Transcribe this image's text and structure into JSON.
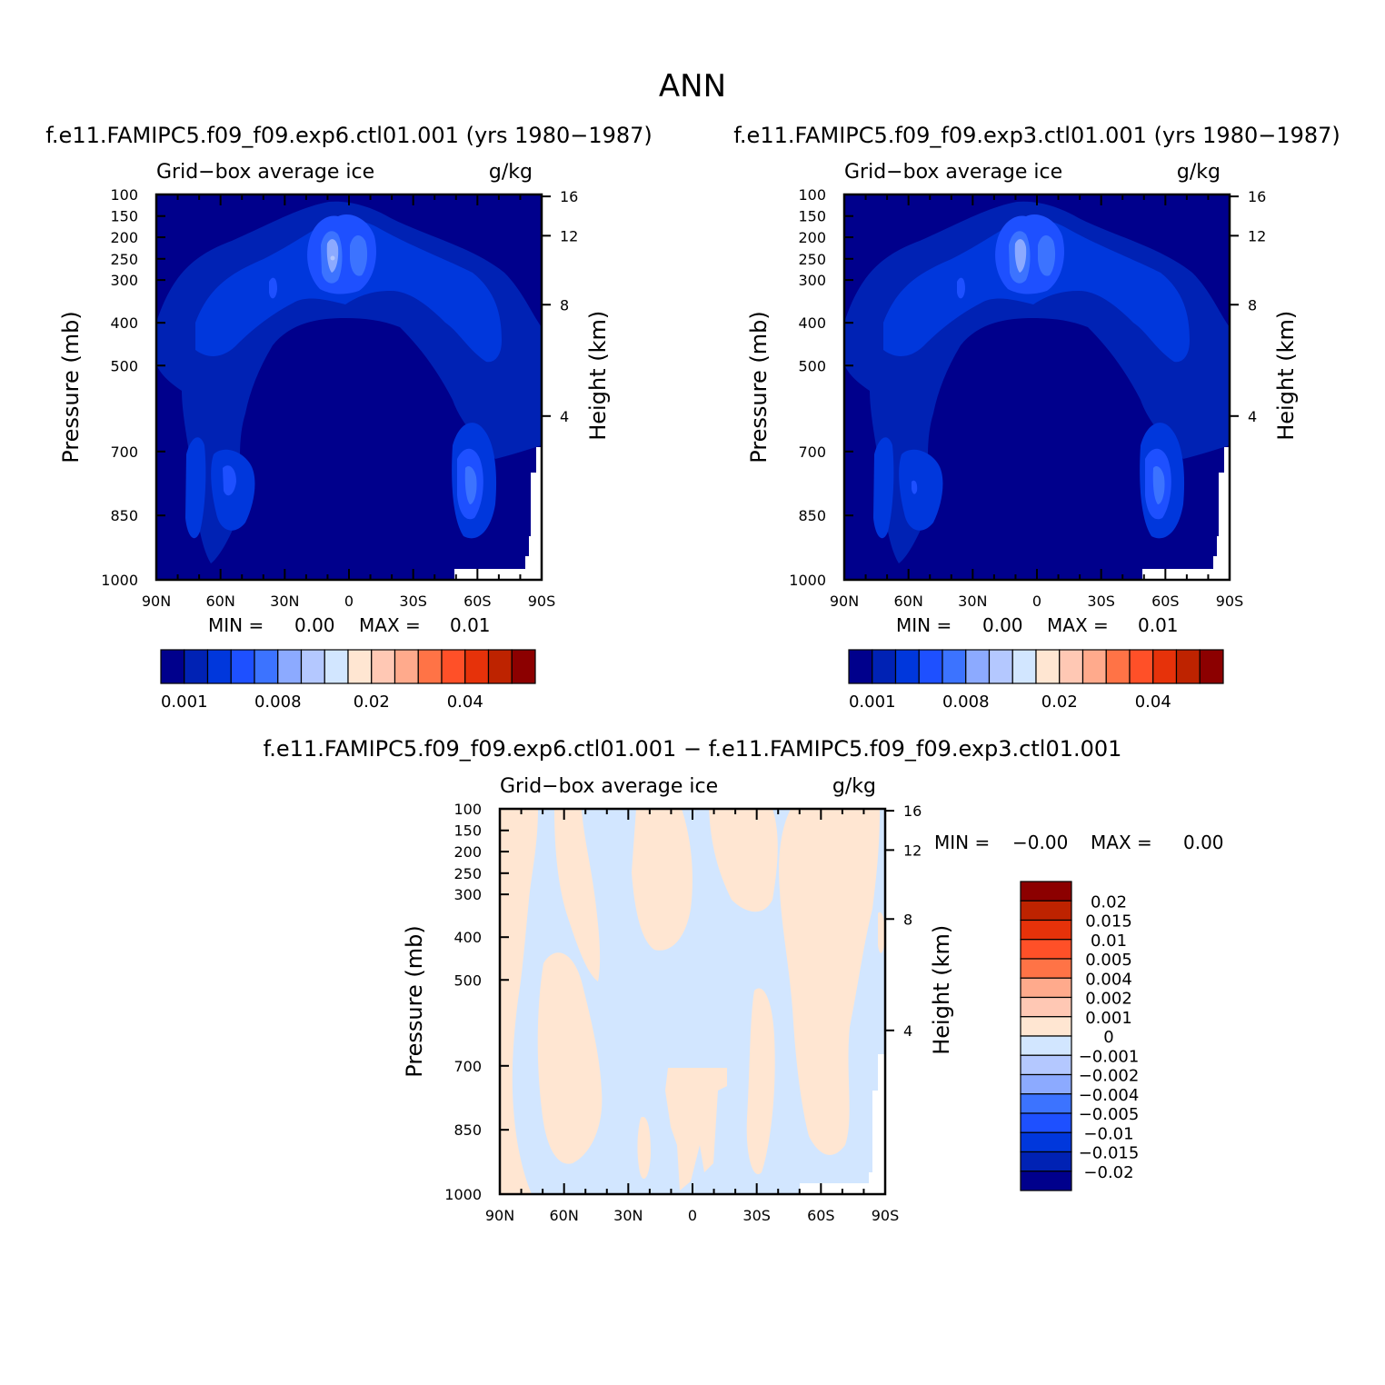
{
  "page": {
    "title": "ANN",
    "panel_a_title": "f.e11.FAMIPC5.f09_f09.exp6.ctl01.001 (yrs 1980−1987)",
    "panel_b_title": "f.e11.FAMIPC5.f09_f09.exp3.ctl01.001 (yrs 1980−1987)",
    "diff_title": "f.e11.FAMIPC5.f09_f09.exp6.ctl01.001 − f.e11.FAMIPC5.f09_f09.exp3.ctl01.001"
  },
  "chart_data": [
    {
      "type": "heatmap",
      "label_left": "Grid−box average ice",
      "label_right": "g/kg",
      "ylabel": "Pressure (mb)",
      "y2label": "Height (km)",
      "x_ticks": [
        "90N",
        "60N",
        "30N",
        "0",
        "30S",
        "60S",
        "90S"
      ],
      "y_ticks": [
        "100",
        "150",
        "200",
        "250",
        "300",
        "400",
        "500",
        "700",
        "850",
        "1000"
      ],
      "y2_ticks": [
        "16",
        "12",
        "8",
        "4"
      ],
      "min_text": "MIN =",
      "min_value": "0.00",
      "max_text": "MAX =",
      "max_value": "0.01",
      "colorbar_labels": [
        "0.001",
        "0.008",
        "0.02",
        "0.04"
      ],
      "colors": [
        "#00008c",
        "#0022b4",
        "#0037dc",
        "#1e50ff",
        "#3c73ff",
        "#8caaff",
        "#b4c8ff",
        "#d2e6ff",
        "#ffe6d2",
        "#ffc8b4",
        "#ffaa8c",
        "#ff7346",
        "#ff5028",
        "#e6320a",
        "#be2300",
        "#8c0000"
      ]
    },
    {
      "type": "heatmap",
      "label_left": "Grid−box average ice",
      "label_right": "g/kg",
      "ylabel": "Pressure (mb)",
      "y2label": "Height (km)",
      "x_ticks": [
        "90N",
        "60N",
        "30N",
        "0",
        "30S",
        "60S",
        "90S"
      ],
      "y_ticks": [
        "100",
        "150",
        "200",
        "250",
        "300",
        "400",
        "500",
        "700",
        "850",
        "1000"
      ],
      "y2_ticks": [
        "16",
        "12",
        "8",
        "4"
      ],
      "min_text": "MIN =",
      "min_value": "0.00",
      "max_text": "MAX =",
      "max_value": "0.01",
      "colorbar_labels": [
        "0.001",
        "0.008",
        "0.02",
        "0.04"
      ]
    },
    {
      "type": "heatmap",
      "label_left": "Grid−box average ice",
      "label_right": "g/kg",
      "ylabel": "Pressure (mb)",
      "y2label": "Height (km)",
      "x_ticks": [
        "90N",
        "60N",
        "30N",
        "0",
        "30S",
        "60S",
        "90S"
      ],
      "y_ticks": [
        "100",
        "150",
        "200",
        "250",
        "300",
        "400",
        "500",
        "700",
        "850",
        "1000"
      ],
      "y2_ticks": [
        "16",
        "12",
        "8",
        "4"
      ],
      "min_text": "MIN =",
      "min_value": "−0.00",
      "max_text": "MAX =",
      "max_value": "0.00",
      "colorbar_labels": [
        "0.02",
        "0.015",
        "0.01",
        "0.005",
        "0.004",
        "0.002",
        "0.001",
        "0",
        "−0.001",
        "−0.002",
        "−0.004",
        "−0.005",
        "−0.01",
        "−0.015",
        "−0.02"
      ],
      "colors": [
        "#8c0000",
        "#be2300",
        "#e6320a",
        "#ff5028",
        "#ff7346",
        "#ffaa8c",
        "#ffc8b4",
        "#ffe6d2",
        "#d2e6ff",
        "#b4c8ff",
        "#8caaff",
        "#3c73ff",
        "#1e50ff",
        "#0037dc",
        "#0022b4",
        "#00008c"
      ]
    }
  ]
}
